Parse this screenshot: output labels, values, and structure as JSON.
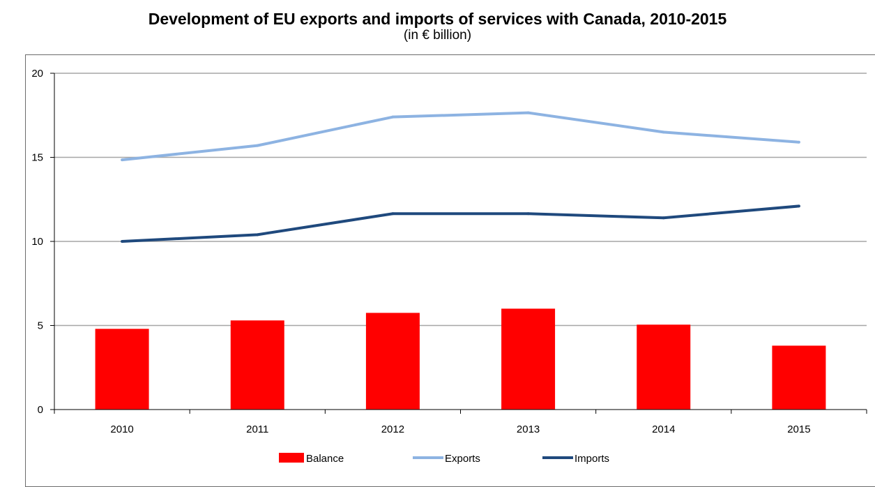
{
  "chart_data": {
    "type": "bar",
    "title": "Development of EU exports and imports of services with Canada, 2010-2015",
    "subtitle": "(in € billion)",
    "categories": [
      "2010",
      "2011",
      "2012",
      "2013",
      "2014",
      "2015"
    ],
    "series": [
      {
        "name": "Balance",
        "type": "bar",
        "color": "#ff0000",
        "values": [
          4.8,
          5.3,
          5.75,
          6.0,
          5.05,
          3.8
        ]
      },
      {
        "name": "Exports",
        "type": "line",
        "color": "#8db3e2",
        "values": [
          14.85,
          15.7,
          17.4,
          17.65,
          16.5,
          15.9
        ]
      },
      {
        "name": "Imports",
        "type": "line",
        "color": "#1f497d",
        "values": [
          10.0,
          10.4,
          11.65,
          11.65,
          11.4,
          12.1
        ]
      }
    ],
    "yticks": [
      "0",
      "5",
      "10",
      "15",
      "20"
    ],
    "ylim": [
      0,
      20
    ],
    "grid": true,
    "legend_position": "bottom"
  }
}
